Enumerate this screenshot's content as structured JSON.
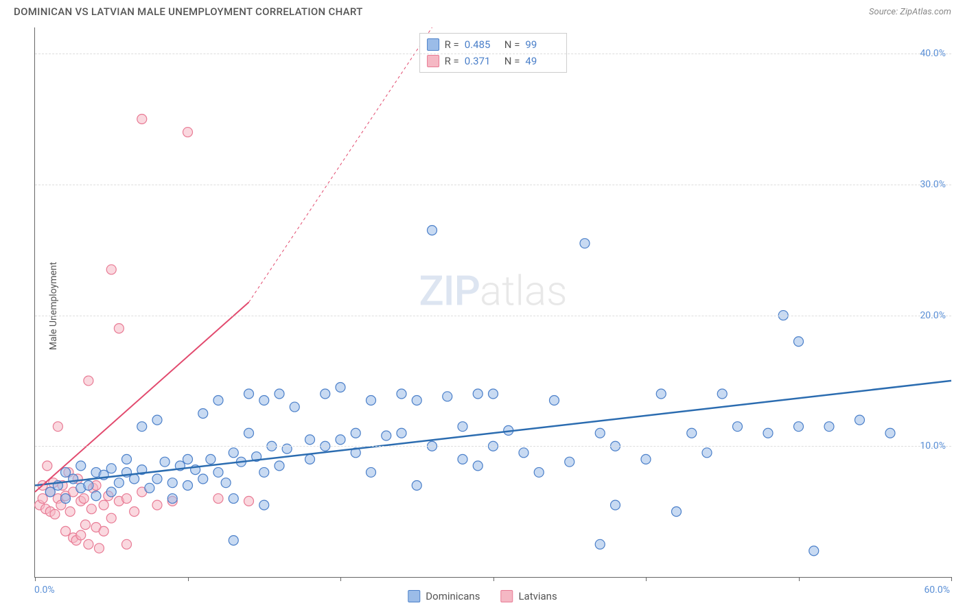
{
  "title": "DOMINICAN VS LATVIAN MALE UNEMPLOYMENT CORRELATION CHART",
  "source": "Source: ZipAtlas.com",
  "y_axis_label": "Male Unemployment",
  "watermark": {
    "zip": "ZIP",
    "atlas": "atlas"
  },
  "chart": {
    "type": "scatter",
    "background_color": "#ffffff",
    "grid_color": "#dddddd",
    "axis_color": "#666666",
    "xlim": [
      0,
      60
    ],
    "ylim": [
      0,
      42
    ],
    "x_ticks": [
      0,
      10,
      20,
      30,
      40,
      50,
      60
    ],
    "x_tick_labels": {
      "0": "0.0%",
      "60": "60.0%"
    },
    "y_ticks": [
      10,
      20,
      30,
      40
    ],
    "y_tick_labels": {
      "10": "10.0%",
      "20": "20.0%",
      "30": "30.0%",
      "40": "40.0%"
    },
    "tick_label_color": "#5a8fd6",
    "tick_label_fontsize": 14,
    "marker_radius": 7,
    "marker_opacity": 0.55,
    "series": {
      "dominicans": {
        "label": "Dominicans",
        "fill_color": "#9bbce8",
        "stroke_color": "#4a7fc9",
        "line_color": "#2b6cb0",
        "line_width": 2.5,
        "R": "0.485",
        "N": "99",
        "trend": {
          "x1": 0,
          "y1": 7.0,
          "x2": 60,
          "y2": 15.0
        },
        "points": [
          [
            1,
            6.5
          ],
          [
            1.5,
            7
          ],
          [
            2,
            6
          ],
          [
            2,
            8
          ],
          [
            2.5,
            7.5
          ],
          [
            3,
            6.8
          ],
          [
            3,
            8.5
          ],
          [
            3.5,
            7
          ],
          [
            4,
            8
          ],
          [
            4,
            6.2
          ],
          [
            4.5,
            7.8
          ],
          [
            5,
            8.3
          ],
          [
            5,
            6.5
          ],
          [
            5.5,
            7.2
          ],
          [
            6,
            8
          ],
          [
            6,
            9
          ],
          [
            6.5,
            7.5
          ],
          [
            7,
            8.2
          ],
          [
            7,
            11.5
          ],
          [
            7.5,
            6.8
          ],
          [
            8,
            7.5
          ],
          [
            8,
            12
          ],
          [
            8.5,
            8.8
          ],
          [
            9,
            7.2
          ],
          [
            9,
            6
          ],
          [
            9.5,
            8.5
          ],
          [
            10,
            9
          ],
          [
            10,
            7
          ],
          [
            10.5,
            8.2
          ],
          [
            11,
            12.5
          ],
          [
            11,
            7.5
          ],
          [
            11.5,
            9
          ],
          [
            12,
            8
          ],
          [
            12,
            13.5
          ],
          [
            12.5,
            7.2
          ],
          [
            13,
            9.5
          ],
          [
            13,
            2.8
          ],
          [
            13.5,
            8.8
          ],
          [
            14,
            11
          ],
          [
            14,
            14
          ],
          [
            14.5,
            9.2
          ],
          [
            15,
            8
          ],
          [
            15,
            13.5
          ],
          [
            15.5,
            10
          ],
          [
            16,
            14
          ],
          [
            16,
            8.5
          ],
          [
            16.5,
            9.8
          ],
          [
            17,
            13
          ],
          [
            18,
            10.5
          ],
          [
            18,
            9
          ],
          [
            19,
            14
          ],
          [
            19,
            10
          ],
          [
            20,
            10.5
          ],
          [
            20,
            14.5
          ],
          [
            21,
            11
          ],
          [
            21,
            9.5
          ],
          [
            22,
            8
          ],
          [
            22,
            13.5
          ],
          [
            23,
            10.8
          ],
          [
            24,
            14
          ],
          [
            24,
            11
          ],
          [
            25,
            13.5
          ],
          [
            25,
            7
          ],
          [
            26,
            10
          ],
          [
            26,
            26.5
          ],
          [
            27,
            13.8
          ],
          [
            28,
            9
          ],
          [
            28,
            11.5
          ],
          [
            29,
            8.5
          ],
          [
            30,
            14
          ],
          [
            30,
            10
          ],
          [
            31,
            11.2
          ],
          [
            32,
            9.5
          ],
          [
            33,
            8
          ],
          [
            34,
            13.5
          ],
          [
            35,
            8.8
          ],
          [
            36,
            25.5
          ],
          [
            37,
            11
          ],
          [
            38,
            10
          ],
          [
            38,
            5.5
          ],
          [
            40,
            9
          ],
          [
            41,
            14
          ],
          [
            42,
            5
          ],
          [
            43,
            11
          ],
          [
            44,
            9.5
          ],
          [
            45,
            14
          ],
          [
            46,
            11.5
          ],
          [
            48,
            11
          ],
          [
            49,
            20
          ],
          [
            50,
            11.5
          ],
          [
            50,
            18
          ],
          [
            51,
            2
          ],
          [
            52,
            11.5
          ],
          [
            54,
            12
          ],
          [
            56,
            11
          ],
          [
            37,
            2.5
          ],
          [
            13,
            6
          ],
          [
            15,
            5.5
          ],
          [
            29,
            14
          ]
        ]
      },
      "latvians": {
        "label": "Latvians",
        "fill_color": "#f5b8c4",
        "stroke_color": "#e87a94",
        "line_color": "#e24a6e",
        "line_width": 2,
        "R": "0.371",
        "N": "49",
        "trend_solid": {
          "x1": 0,
          "y1": 6.5,
          "x2": 14,
          "y2": 21
        },
        "trend_dash": {
          "x1": 14,
          "y1": 21,
          "x2": 26,
          "y2": 42
        },
        "points": [
          [
            0.3,
            5.5
          ],
          [
            0.5,
            6
          ],
          [
            0.5,
            7
          ],
          [
            0.7,
            5.2
          ],
          [
            0.8,
            8.5
          ],
          [
            1,
            6.5
          ],
          [
            1,
            5
          ],
          [
            1.2,
            7.2
          ],
          [
            1.3,
            4.8
          ],
          [
            1.5,
            6
          ],
          [
            1.5,
            11.5
          ],
          [
            1.7,
            5.5
          ],
          [
            1.8,
            7
          ],
          [
            2,
            6.2
          ],
          [
            2,
            3.5
          ],
          [
            2.2,
            8
          ],
          [
            2.3,
            5
          ],
          [
            2.5,
            6.5
          ],
          [
            2.5,
            3
          ],
          [
            2.7,
            2.8
          ],
          [
            2.8,
            7.5
          ],
          [
            3,
            5.8
          ],
          [
            3,
            3.2
          ],
          [
            3.2,
            6
          ],
          [
            3.3,
            4
          ],
          [
            3.5,
            2.5
          ],
          [
            3.5,
            15
          ],
          [
            3.7,
            5.2
          ],
          [
            3.8,
            6.8
          ],
          [
            4,
            3.8
          ],
          [
            4,
            7
          ],
          [
            4.2,
            2.2
          ],
          [
            4.5,
            5.5
          ],
          [
            4.5,
            3.5
          ],
          [
            4.8,
            6.2
          ],
          [
            5,
            23.5
          ],
          [
            5,
            4.5
          ],
          [
            5.5,
            5.8
          ],
          [
            5.5,
            19
          ],
          [
            6,
            2.5
          ],
          [
            6,
            6
          ],
          [
            6.5,
            5
          ],
          [
            7,
            35
          ],
          [
            7,
            6.5
          ],
          [
            8,
            5.5
          ],
          [
            9,
            5.8
          ],
          [
            10,
            34
          ],
          [
            12,
            6
          ],
          [
            14,
            5.8
          ]
        ]
      }
    }
  },
  "stats_box": {
    "rows": [
      {
        "series": "dominicans",
        "R_label": "R =",
        "N_label": "N ="
      },
      {
        "series": "latvians",
        "R_label": "R =",
        "N_label": "N ="
      }
    ]
  }
}
